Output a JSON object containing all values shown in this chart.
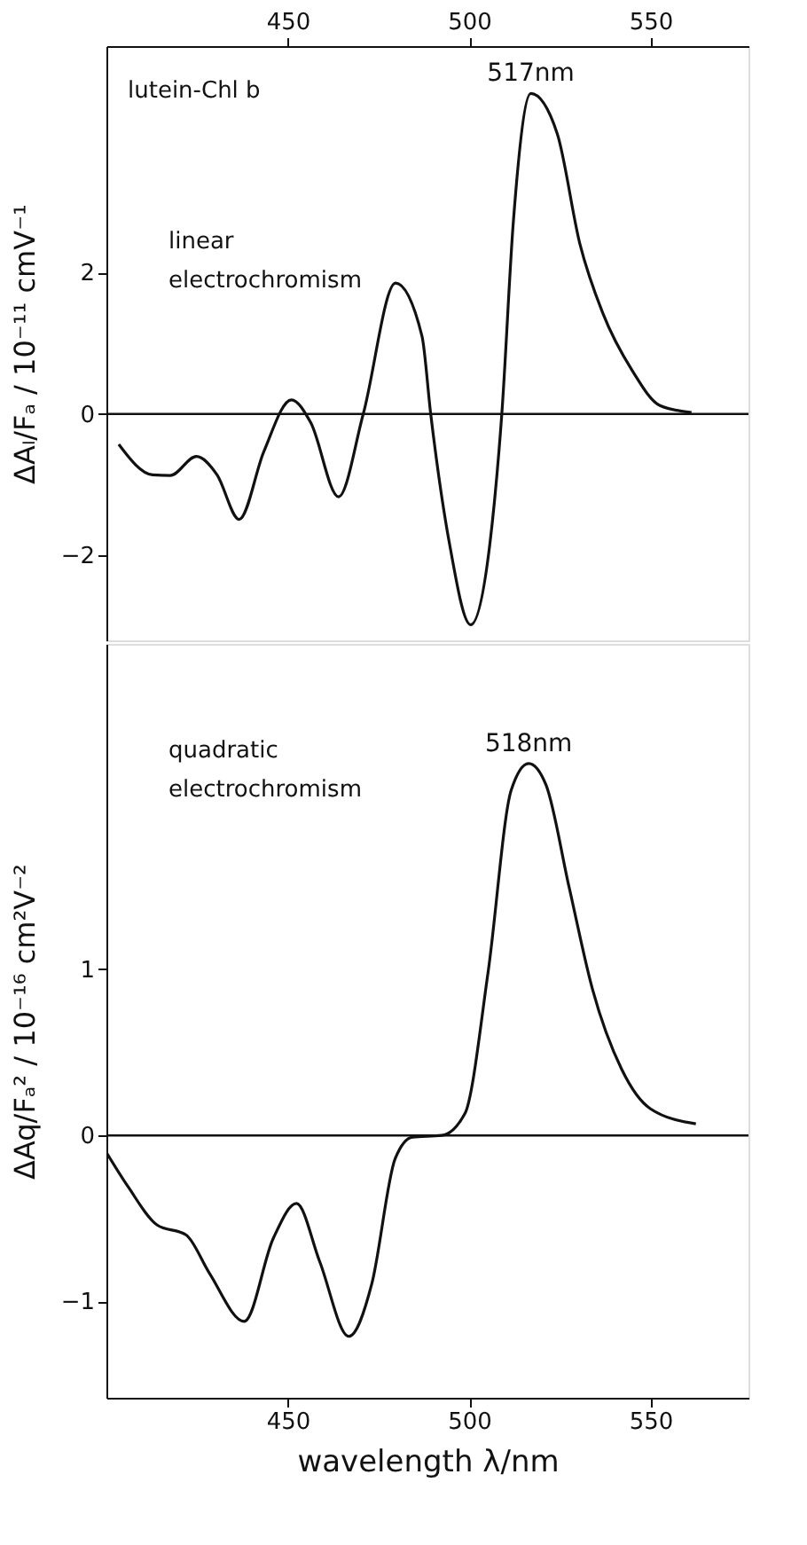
{
  "chart_data": [
    {
      "type": "line",
      "ylabel": "ΔAₗ/Fₐ / 10⁻¹¹ cmV⁻¹",
      "xlim": [
        400,
        577
      ],
      "xticks": [
        450,
        500,
        550
      ],
      "ylim": [
        -3.2,
        5.2
      ],
      "yticks": [
        -2,
        0,
        2
      ],
      "grid": false,
      "marker": "none",
      "line_style": "solid",
      "series": [
        {
          "color": "#111111",
          "x": [
            403.4,
            412.7,
            417.6,
            424.8,
            430.5,
            436.6,
            443.4,
            451,
            456.3,
            464,
            470.8,
            479.7,
            487,
            489.4,
            494.6,
            500.4,
            505.7,
            509,
            512.2,
            517,
            524.3,
            530.5,
            536.8,
            545,
            552.6,
            561.3
          ],
          "values": [
            -0.43,
            -0.86,
            -0.87,
            -0.6,
            -0.86,
            -1.49,
            -0.53,
            0.2,
            -0.12,
            -1.17,
            0,
            1.85,
            1.1,
            0,
            -1.84,
            -2.98,
            -1.84,
            0,
            2.73,
            4.53,
            3.96,
            2.41,
            1.43,
            0.61,
            0.12,
            0.02
          ]
        }
      ],
      "ref_lines": [
        {
          "axis": "y",
          "value": 0,
          "color": "#111111"
        }
      ],
      "annotations": [
        "lutein-Chl b",
        "linear electrochromism",
        {
          "text": "517nm",
          "x": 517,
          "y": 4.53
        }
      ]
    },
    {
      "type": "line",
      "xlabel": "wavelength λ/nm",
      "ylabel": "ΔAq/Fₐ² / 10⁻¹⁶ cm²V⁻²",
      "xlim": [
        400,
        577
      ],
      "xticks": [
        450,
        500,
        550
      ],
      "ylim": [
        -1.58,
        2.96
      ],
      "yticks": [
        -1,
        0,
        1
      ],
      "grid": false,
      "marker": "none",
      "line_style": "solid",
      "series": [
        {
          "color": "#111111",
          "x": [
            400.2,
            406,
            414,
            422,
            428.4,
            438,
            446,
            452.4,
            458.8,
            466.8,
            473.2,
            479.6,
            484.4,
            492.4,
            498.8,
            505.2,
            511.6,
            516.4,
            521.2,
            527.6,
            534,
            542,
            550,
            562.5
          ],
          "values": [
            -0.11,
            -0.31,
            -0.54,
            -0.6,
            -0.83,
            -1.12,
            -0.62,
            -0.41,
            -0.76,
            -1.21,
            -0.89,
            -0.14,
            -0.01,
            0,
            0.13,
            0.98,
            2.08,
            2.24,
            2.11,
            1.49,
            0.88,
            0.4,
            0.16,
            0.07
          ]
        }
      ],
      "ref_lines": [
        {
          "axis": "y",
          "value": 0,
          "color": "#111111"
        }
      ],
      "annotations": [
        "quadratic electrochromism",
        {
          "text": "518nm",
          "x": 516.4,
          "y": 2.24
        }
      ]
    }
  ]
}
